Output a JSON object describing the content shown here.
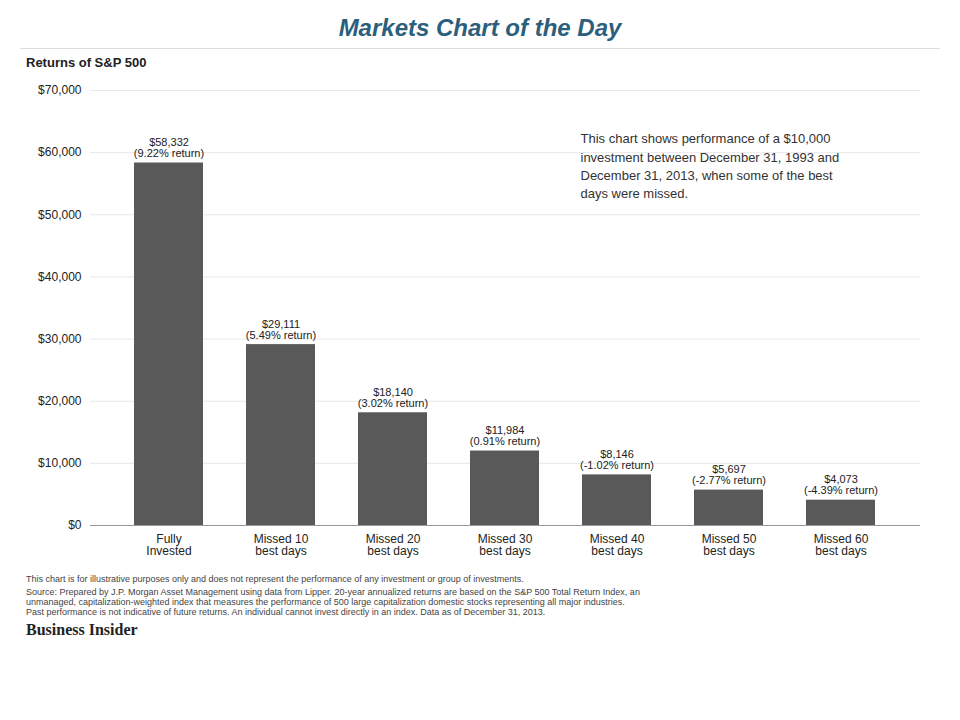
{
  "chart_data": {
    "type": "bar",
    "title": "Markets Chart of the Day",
    "ylabel": "Returns of S&P 500",
    "categories": [
      "Fully\nInvested",
      "Missed 10\nbest days",
      "Missed 20\nbest days",
      "Missed 30\nbest days",
      "Missed 40\nbest days",
      "Missed 50\nbest days",
      "Missed 60\nbest days"
    ],
    "values": [
      58332,
      29111,
      18140,
      11984,
      8146,
      5697,
      4073
    ],
    "value_labels": [
      "$58,332\n(9.22% return)",
      "$29,111\n(5.49% return)",
      "$18,140\n(3.02% return)",
      "$11,984\n(0.91% return)",
      "$8,146\n(-1.02% return)",
      "$5,697\n(-2.77% return)",
      "$4,073\n(-4.39% return)"
    ],
    "data_labels": true,
    "color": "#595959",
    "ylim": [
      0,
      70000
    ],
    "yticks": [
      {
        "value": 0,
        "label": "$0"
      },
      {
        "value": 10000,
        "label": "$10,000"
      },
      {
        "value": 20000,
        "label": "$20,000"
      },
      {
        "value": 30000,
        "label": "$30,000"
      },
      {
        "value": 40000,
        "label": "$40,000"
      },
      {
        "value": 50000,
        "label": "$50,000"
      },
      {
        "value": 60000,
        "label": "$60,000"
      },
      {
        "value": 70000,
        "label": "$70,000"
      }
    ],
    "grid": true,
    "annotation": "This chart shows performance of a $10,000\ninvestment between December 31, 1993 and\nDecember 31, 2013, when some of the best\ndays were missed.",
    "notes": [
      "This chart is for illustrative purposes only and does not represent the performance of any investment or group of investments.",
      "Source: Prepared by J.P. Morgan Asset Management using data from Lipper. 20-year annualized returns are based on the S&P 500 Total Return Index, an\nunmanaged, capitalization-weighted index that measures the performance of 500 large capitalization domestic stocks representing all major industries.\nPast performance is not indicative of future returns. An individual cannot invest directly in an index. Data as of December 31, 2013."
    ],
    "credit": "Business Insider"
  }
}
